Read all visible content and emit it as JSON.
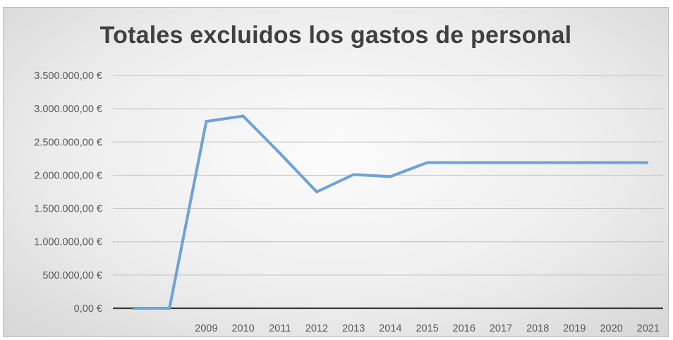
{
  "chart_data": {
    "type": "line",
    "title": "Totales excluidos los gastos de personal",
    "xlabel": "",
    "ylabel": "",
    "categories": [
      "",
      "",
      "2009",
      "2010",
      "2011",
      "2012",
      "2013",
      "2014",
      "2015",
      "2016",
      "2017",
      "2018",
      "2019",
      "2020",
      "2021"
    ],
    "series": [
      {
        "name": "",
        "color": "#6fa1d6",
        "values": [
          0,
          0,
          2810000,
          2890000,
          2330000,
          1750000,
          2010000,
          1980000,
          2190000,
          2190000,
          2190000,
          2190000,
          2190000,
          2190000,
          2190000
        ]
      }
    ],
    "ylim": [
      0,
      3500000
    ],
    "y_ticks": [
      {
        "value": 0,
        "label": "0,00 €"
      },
      {
        "value": 500000,
        "label": "500.000,00 €"
      },
      {
        "value": 1000000,
        "label": "1.000.000,00 €"
      },
      {
        "value": 1500000,
        "label": "1.500.000,00 €"
      },
      {
        "value": 2000000,
        "label": "2.000.000,00 €"
      },
      {
        "value": 2500000,
        "label": "2.500.000,00 €"
      },
      {
        "value": 3000000,
        "label": "3.000.000,00 €"
      },
      {
        "value": 3500000,
        "label": "3.500.000,00 €"
      }
    ],
    "grid": true,
    "legend": "none"
  }
}
